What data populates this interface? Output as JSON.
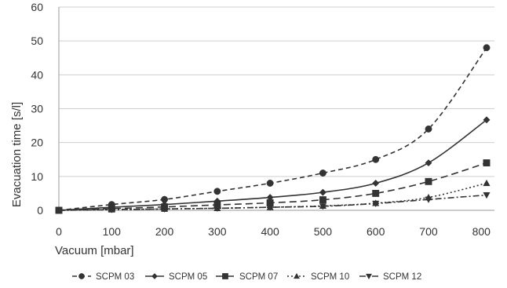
{
  "chart_data": {
    "type": "line",
    "title": "",
    "xlabel": "Vacuum [mbar]",
    "ylabel": "Evacuation time [s/l]",
    "xlim": [
      0,
      800
    ],
    "ylim": [
      0,
      60
    ],
    "x_ticks": [
      0,
      100,
      200,
      300,
      400,
      500,
      600,
      700,
      800
    ],
    "y_ticks": [
      0,
      10,
      20,
      30,
      40,
      50,
      60
    ],
    "grid": "horizontal",
    "legend_position": "bottom",
    "color": "#333333",
    "x": [
      0,
      100,
      200,
      300,
      400,
      500,
      600,
      700,
      810
    ],
    "series": [
      {
        "name": "SCPM 03",
        "marker": "circle",
        "line": "dashed",
        "values": [
          0,
          1.7,
          3.2,
          5.6,
          8.0,
          11.0,
          15.0,
          24.0,
          48.0
        ]
      },
      {
        "name": "SCPM 05",
        "marker": "diamond",
        "line": "solid",
        "values": [
          0,
          0.9,
          1.7,
          2.7,
          3.8,
          5.3,
          8.0,
          14.0,
          26.7
        ]
      },
      {
        "name": "SCPM 07",
        "marker": "square",
        "line": "dash",
        "values": [
          0,
          0.5,
          1.0,
          1.6,
          2.2,
          3.1,
          5.0,
          8.5,
          14.0
        ]
      },
      {
        "name": "SCPM 10",
        "marker": "triangle-up",
        "line": "dotted",
        "values": [
          0,
          0.2,
          0.4,
          0.6,
          0.9,
          1.3,
          2.1,
          3.8,
          8.0
        ]
      },
      {
        "name": "SCPM 12",
        "marker": "triangle-down",
        "line": "dash-dot",
        "values": [
          0,
          0.2,
          0.4,
          0.6,
          0.9,
          1.2,
          2.0,
          3.2,
          4.5
        ]
      }
    ]
  }
}
